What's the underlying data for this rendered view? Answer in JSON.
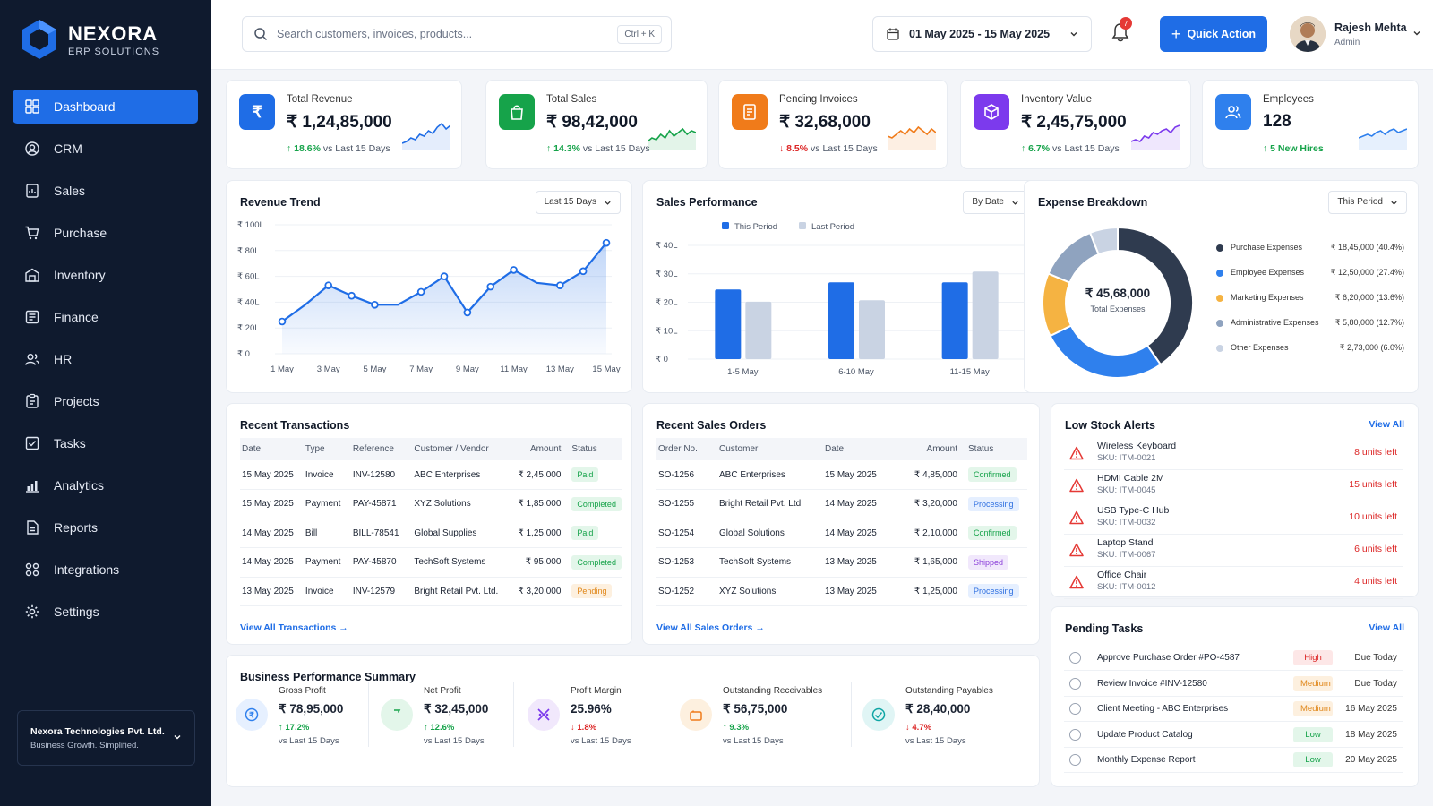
{
  "brand": {
    "name": "NEXORA",
    "sub": "ERP SOLUTIONS"
  },
  "sidebar": {
    "items": [
      {
        "label": "Dashboard",
        "icon": "grid-icon",
        "active": true
      },
      {
        "label": "CRM",
        "icon": "user-circle-icon"
      },
      {
        "label": "Sales",
        "icon": "sales-doc-icon"
      },
      {
        "label": "Purchase",
        "icon": "cart-icon"
      },
      {
        "label": "Inventory",
        "icon": "warehouse-icon"
      },
      {
        "label": "Finance",
        "icon": "ledger-icon"
      },
      {
        "label": "HR",
        "icon": "users-icon"
      },
      {
        "label": "Projects",
        "icon": "clipboard-icon"
      },
      {
        "label": "Tasks",
        "icon": "checklist-icon"
      },
      {
        "label": "Analytics",
        "icon": "bar-chart-icon"
      },
      {
        "label": "Reports",
        "icon": "report-icon"
      },
      {
        "label": "Integrations",
        "icon": "nodes-icon"
      },
      {
        "label": "Settings",
        "icon": "gear-icon"
      }
    ],
    "company": {
      "name": "Nexora Technologies Pvt. Ltd.",
      "tagline": "Business Growth. Simplified."
    }
  },
  "topbar": {
    "search_placeholder": "Search customers, invoices, products...",
    "shortcut": "Ctrl + K",
    "date_range": "01 May 2025 - 15 May 2025",
    "notification_count": "7",
    "quick_action": "Quick Action",
    "user": {
      "name": "Rajesh Mehta",
      "role": "Admin"
    }
  },
  "kpis": [
    {
      "label": "Total Revenue",
      "value": "₹ 1,24,85,000",
      "delta": "18.6%",
      "dir": "up",
      "suffix": "vs Last 15 Days",
      "color": "#1f6de6"
    },
    {
      "label": "Total Sales",
      "value": "₹ 98,42,000",
      "delta": "14.3%",
      "dir": "up",
      "suffix": "vs Last 15 Days",
      "color": "#16a34a"
    },
    {
      "label": "Pending Invoices",
      "value": "₹ 32,68,000",
      "delta": "8.5%",
      "dir": "down",
      "suffix": "vs Last 15 Days",
      "color": "#f07b1a"
    },
    {
      "label": "Inventory Value",
      "value": "₹ 2,45,75,000",
      "delta": "6.7%",
      "dir": "up",
      "suffix": "vs Last 15 Days",
      "color": "#7c3aed"
    },
    {
      "label": "Employees",
      "value": "128",
      "delta": "5 New Hires",
      "dir": "up",
      "suffix": "",
      "color": "#2f80ed"
    }
  ],
  "revenue_trend": {
    "title": "Revenue Trend",
    "filter": "Last 15 Days",
    "chart_data": {
      "type": "area",
      "x": [
        "1 May",
        "2 May",
        "3 May",
        "4 May",
        "5 May",
        "6 May",
        "7 May",
        "8 May",
        "9 May",
        "10 May",
        "11 May",
        "12 May",
        "13 May",
        "14 May",
        "15 May"
      ],
      "x_tick_labels": [
        "1 May",
        "3 May",
        "5 May",
        "7 May",
        "9 May",
        "11 May",
        "13 May",
        "15 May"
      ],
      "values": [
        25,
        38,
        53,
        45,
        38,
        38,
        48,
        60,
        32,
        52,
        65,
        55,
        53,
        64,
        86
      ],
      "y_ticks": [
        "₹ 0",
        "₹ 20L",
        "₹ 40L",
        "₹ 60L",
        "₹ 80L",
        "₹ 100L"
      ],
      "ylim": [
        0,
        100
      ],
      "color": "#1f6de6"
    }
  },
  "sales_performance": {
    "title": "Sales Performance",
    "filter": "By Date",
    "chart_data": {
      "type": "bar",
      "categories": [
        "1-5 May",
        "6-10 May",
        "11-15 May"
      ],
      "series": [
        {
          "name": "This Period",
          "values": [
            24.5,
            27,
            27
          ],
          "color": "#1f6de6"
        },
        {
          "name": "Last Period",
          "values": [
            20.2,
            20.7,
            30.8
          ],
          "color": "#c9d3e3"
        }
      ],
      "y_ticks": [
        "₹ 0",
        "₹ 10L",
        "₹ 20L",
        "₹ 30L",
        "₹ 40L"
      ],
      "ylim": [
        0,
        40
      ]
    }
  },
  "expense_breakdown": {
    "title": "Expense Breakdown",
    "filter": "This Period",
    "total": "₹ 45,68,000",
    "total_label": "Total Expenses",
    "chart_data": {
      "type": "pie",
      "slices": [
        {
          "name": "Purchase Expenses",
          "value": 40.4,
          "amount": "₹ 18,45,000 (40.4%)",
          "color": "#2f3b4f"
        },
        {
          "name": "Employee Expenses",
          "value": 27.4,
          "amount": "₹ 12,50,000 (27.4%)",
          "color": "#2f80ed"
        },
        {
          "name": "Marketing Expenses",
          "value": 13.6,
          "amount": "₹ 6,20,000 (13.6%)",
          "color": "#f5b342"
        },
        {
          "name": "Administrative Expenses",
          "value": 12.7,
          "amount": "₹ 5,80,000 (12.7%)",
          "color": "#8fa3bf"
        },
        {
          "name": "Other Expenses",
          "value": 6.0,
          "amount": "₹ 2,73,000 (6.0%)",
          "color": "#c9d3e3"
        }
      ]
    }
  },
  "recent_transactions": {
    "title": "Recent Transactions",
    "columns": [
      "Date",
      "Type",
      "Reference",
      "Customer / Vendor",
      "Amount",
      "Status"
    ],
    "rows": [
      [
        "15 May 2025",
        "Invoice",
        "INV-12580",
        "ABC Enterprises",
        "₹ 2,45,000",
        "Paid"
      ],
      [
        "15 May 2025",
        "Payment",
        "PAY-45871",
        "XYZ Solutions",
        "₹ 1,85,000",
        "Completed"
      ],
      [
        "14 May 2025",
        "Bill",
        "BILL-78541",
        "Global Supplies",
        "₹ 1,25,000",
        "Paid"
      ],
      [
        "14 May 2025",
        "Payment",
        "PAY-45870",
        "TechSoft Systems",
        "₹ 95,000",
        "Completed"
      ],
      [
        "13 May 2025",
        "Invoice",
        "INV-12579",
        "Bright Retail Pvt. Ltd.",
        "₹ 3,20,000",
        "Pending"
      ]
    ],
    "link": "View All Transactions"
  },
  "recent_sales_orders": {
    "title": "Recent Sales Orders",
    "columns": [
      "Order No.",
      "Customer",
      "Date",
      "Amount",
      "Status"
    ],
    "rows": [
      [
        "SO-1256",
        "ABC Enterprises",
        "15 May 2025",
        "₹ 4,85,000",
        "Confirmed"
      ],
      [
        "SO-1255",
        "Bright Retail Pvt. Ltd.",
        "14 May 2025",
        "₹ 3,20,000",
        "Processing"
      ],
      [
        "SO-1254",
        "Global Solutions",
        "14 May 2025",
        "₹ 2,10,000",
        "Confirmed"
      ],
      [
        "SO-1253",
        "TechSoft Systems",
        "13 May 2025",
        "₹ 1,65,000",
        "Shipped"
      ],
      [
        "SO-1252",
        "XYZ Solutions",
        "13 May 2025",
        "₹ 1,25,000",
        "Processing"
      ]
    ],
    "link": "View All Sales Orders"
  },
  "low_stock": {
    "title": "Low Stock Alerts",
    "view_all": "View All",
    "items": [
      {
        "name": "Wireless Keyboard",
        "sku": "SKU: ITM-0021",
        "qty": "8 units left"
      },
      {
        "name": "HDMI Cable 2M",
        "sku": "SKU: ITM-0045",
        "qty": "15 units left"
      },
      {
        "name": "USB Type-C Hub",
        "sku": "SKU: ITM-0032",
        "qty": "10 units left"
      },
      {
        "name": "Laptop Stand",
        "sku": "SKU: ITM-0067",
        "qty": "6 units left"
      },
      {
        "name": "Office Chair",
        "sku": "SKU: ITM-0012",
        "qty": "4 units left"
      }
    ]
  },
  "pending_tasks": {
    "title": "Pending Tasks",
    "view_all": "View All",
    "items": [
      {
        "name": "Approve Purchase Order #PO-4587",
        "priority": "High",
        "due": "Due Today"
      },
      {
        "name": "Review Invoice #INV-12580",
        "priority": "Medium",
        "due": "Due Today"
      },
      {
        "name": "Client Meeting - ABC Enterprises",
        "priority": "Medium",
        "due": "16 May 2025"
      },
      {
        "name": "Update Product Catalog",
        "priority": "Low",
        "due": "18 May 2025"
      },
      {
        "name": "Monthly Expense Report",
        "priority": "Low",
        "due": "20 May 2025"
      }
    ]
  },
  "business_summary": {
    "title": "Business Performance Summary",
    "items": [
      {
        "label": "Gross Profit",
        "value": "₹ 78,95,000",
        "delta": "17.2%",
        "dir": "up",
        "sub": "vs Last 15 Days",
        "icon": "coin-icon",
        "color": "#2f80ed",
        "bg": "#e6f0ff"
      },
      {
        "label": "Net Profit",
        "value": "₹ 32,45,000",
        "delta": "12.6%",
        "dir": "up",
        "sub": "vs Last 15 Days",
        "icon": "money-bag-icon",
        "color": "#16a34a",
        "bg": "#e3f6ea"
      },
      {
        "label": "Profit Margin",
        "value": "25.96%",
        "delta": "1.8%",
        "dir": "down",
        "sub": "vs Last 15 Days",
        "icon": "percent-arrows-icon",
        "color": "#7c3aed",
        "bg": "#f1e8fc"
      },
      {
        "label": "Outstanding Receivables",
        "value": "₹ 56,75,000",
        "delta": "9.3%",
        "dir": "up",
        "sub": "vs Last 15 Days",
        "icon": "wallet-icon",
        "color": "#f07b1a",
        "bg": "#fdf0df"
      },
      {
        "label": "Outstanding Payables",
        "value": "₹ 28,40,000",
        "delta": "4.7%",
        "dir": "down",
        "sub": "vs Last 15 Days",
        "icon": "payables-icon",
        "color": "#0ea5a4",
        "bg": "#e0f5f5"
      }
    ]
  }
}
